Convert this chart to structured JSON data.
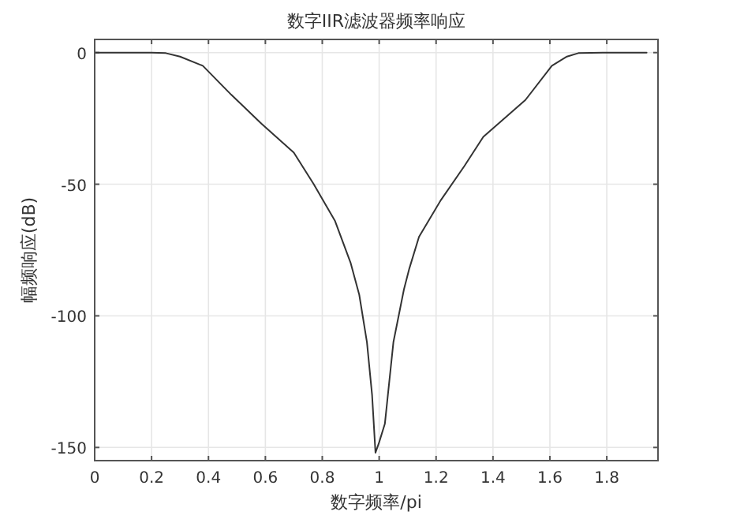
{
  "chart_data": {
    "type": "line",
    "title": "数字IIR滤波器频率响应",
    "xlabel": "数字频率/pi",
    "ylabel": "幅频响应(dB)",
    "x": [
      0,
      0.1,
      0.2,
      0.25,
      0.3,
      0.38,
      0.48,
      0.586,
      0.7,
      0.77,
      0.845,
      0.9,
      0.93,
      0.957,
      0.975,
      0.987,
      1.0,
      1.02,
      1.05,
      1.087,
      1.106,
      1.14,
      1.217,
      1.3,
      1.366,
      1.514,
      1.607,
      1.66,
      1.7,
      1.8,
      1.94
    ],
    "series": [
      {
        "color": "#333333",
        "values": [
          0,
          0,
          0,
          -0.2,
          -1.5,
          -5,
          -16,
          -27,
          -38,
          -50,
          -64,
          -80,
          -92,
          -110,
          -130,
          -152,
          -148,
          -141,
          -110,
          -90,
          -82,
          -70,
          -56,
          -43,
          -32,
          -18,
          -5,
          -1.5,
          -0.2,
          0,
          0
        ]
      }
    ],
    "xlim": [
      0,
      1.98
    ],
    "ylim": [
      -155,
      5
    ],
    "xticks": [
      0,
      0.2,
      0.4,
      0.6,
      0.8,
      1,
      1.2,
      1.4,
      1.6,
      1.8
    ],
    "yticks": [
      -150,
      -100,
      -50,
      0
    ],
    "grid": true
  }
}
